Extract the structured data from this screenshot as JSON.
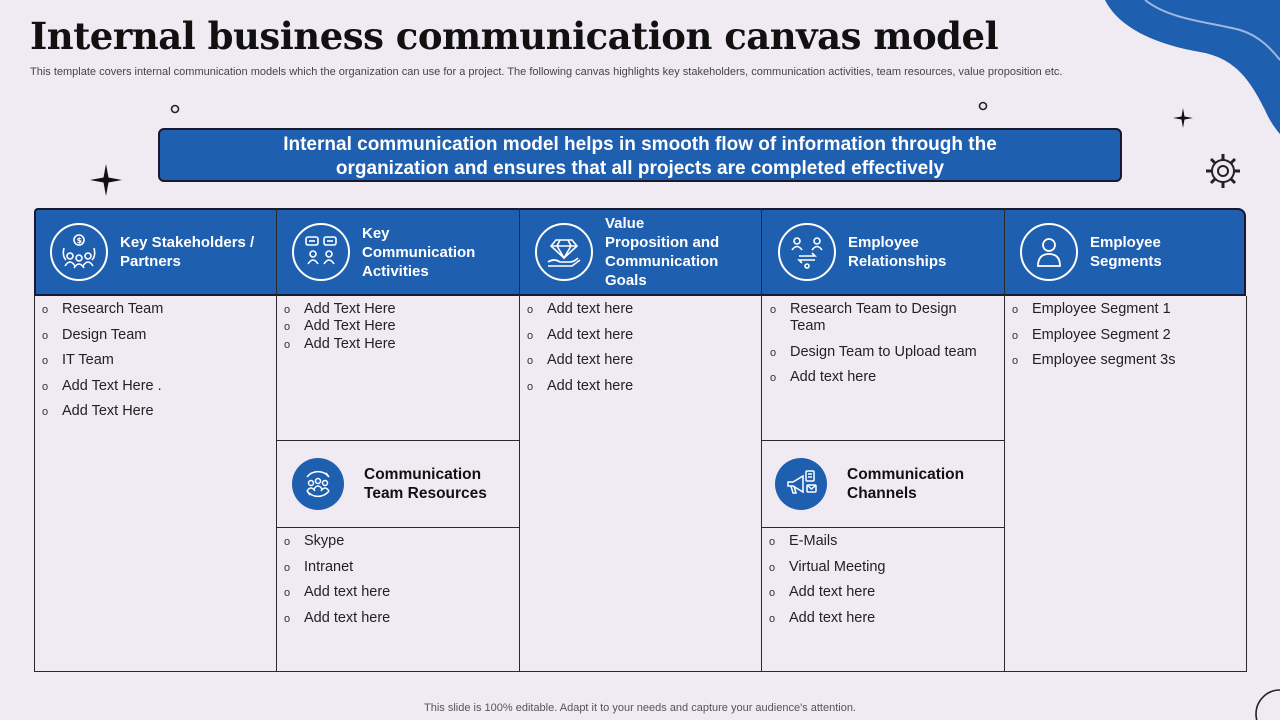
{
  "header": {
    "title": "Internal business communication canvas model",
    "subtitle": "This template covers internal communication models which the organization can use for a project. The following canvas highlights key stakeholders, communication activities, team resources, value proposition etc."
  },
  "banner": {
    "line1": "Internal communication model helps in smooth flow of information through the",
    "line2": "organization and ensures that all projects are completed effectively"
  },
  "columns": [
    {
      "title_line1": "Key Stakeholders /",
      "title_line2": "Partners",
      "icon": "stakeholders-icon",
      "items": [
        "Research Team",
        "Design Team",
        "IT Team",
        "Add Text Here .",
        "Add Text Here"
      ]
    },
    {
      "title_line1": "Key",
      "title_line2": "Communication",
      "title_line3": "Activities",
      "icon": "communication-activities-icon",
      "items": [
        "Add Text Here",
        "Add Text Here",
        "Add Text Here"
      ]
    },
    {
      "title_line1": "Value",
      "title_line2": "Proposition and",
      "title_line3": "Communication",
      "title_line4": "Goals",
      "icon": "diamond-hand-icon",
      "items": [
        "Add text here",
        "Add text here",
        "Add text here",
        "Add text here"
      ]
    },
    {
      "title_line1": "Employee",
      "title_line2": "Relationships",
      "icon": "employee-relationships-icon",
      "items": [
        "Research Team to Design",
        "Team",
        "Design Team to Upload team",
        "Add text here"
      ]
    },
    {
      "title_line1": "Employee",
      "title_line2": "Segments",
      "icon": "person-icon",
      "items": [
        "Employee Segment 1",
        "Employee Segment 2",
        "Employee segment 3s"
      ]
    }
  ],
  "team_resources": {
    "title_line1": "Communication",
    "title_line2": "Team Resources",
    "icon": "team-cycle-icon",
    "items": [
      "Skype",
      "Intranet",
      "Add text here",
      "Add text here"
    ]
  },
  "channels": {
    "title_line1": "Communication",
    "title_line2": "Channels",
    "icon": "megaphone-icon",
    "items": [
      "E-Mails",
      "Virtual Meeting",
      "Add text here",
      "Add text here"
    ]
  },
  "footer": {
    "text": "This slide is 100% editable. Adapt it to your needs and capture your audience's attention."
  },
  "colors": {
    "accent": "#1f5fb0",
    "background": "#f0ebf3",
    "border": "#1a1a2e"
  }
}
